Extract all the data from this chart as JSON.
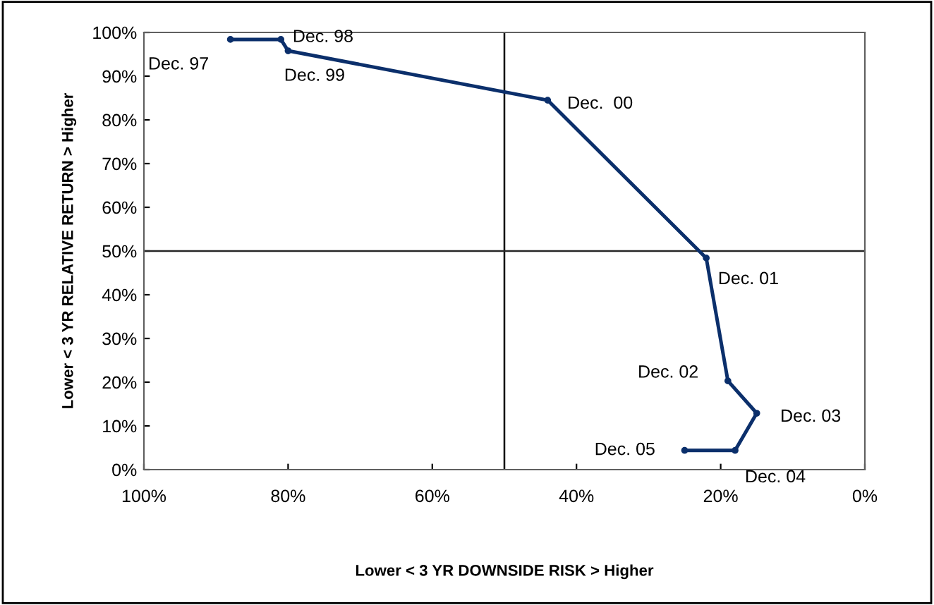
{
  "chart_data": {
    "type": "line",
    "xlabel": "Lower < 3 YR DOWNSIDE RISK > Higher",
    "ylabel": "Lower < 3 YR RELATIVE RETURN > Higher",
    "xlim": [
      100,
      0
    ],
    "xticks": [
      {
        "value": 100,
        "label": "100%"
      },
      {
        "value": 80,
        "label": "80%"
      },
      {
        "value": 60,
        "label": "60%"
      },
      {
        "value": 40,
        "label": "40%"
      },
      {
        "value": 20,
        "label": "20%"
      },
      {
        "value": 0,
        "label": "0%"
      }
    ],
    "ylim": [
      0,
      100
    ],
    "yticks": [
      {
        "value": 0,
        "label": "0%"
      },
      {
        "value": 10,
        "label": "10%"
      },
      {
        "value": 20,
        "label": "20%"
      },
      {
        "value": 30,
        "label": "30%"
      },
      {
        "value": 40,
        "label": "40%"
      },
      {
        "value": 50,
        "label": "50%"
      },
      {
        "value": 60,
        "label": "60%"
      },
      {
        "value": 70,
        "label": "70%"
      },
      {
        "value": 80,
        "label": "80%"
      },
      {
        "value": 90,
        "label": "90%"
      },
      {
        "value": 100,
        "label": "100%"
      }
    ],
    "series": [
      {
        "color": "#0b2f6b",
        "x": [
          88,
          81,
          80,
          44,
          22,
          19,
          15,
          18,
          25
        ],
        "values": [
          98.4,
          98.4,
          95.8,
          84.5,
          48.4,
          20.3,
          12.9,
          4.4,
          4.4
        ]
      }
    ],
    "marker": "circle",
    "line_style": "solid",
    "grid": false,
    "legend": false,
    "ref_lines": [
      {
        "axis": "x",
        "value": 50,
        "color": "#000000"
      },
      {
        "axis": "y",
        "value": 50,
        "color": "#262626"
      }
    ],
    "annotations": [
      {
        "text": "Dec. 97",
        "x": 88,
        "y": 98.4
      },
      {
        "text": "Dec. 98",
        "x": 81,
        "y": 98.4
      },
      {
        "text": "Dec. 99",
        "x": 80,
        "y": 95.8
      },
      {
        "text": "Dec.  00",
        "x": 44,
        "y": 84.5
      },
      {
        "text": "Dec. 01",
        "x": 22,
        "y": 48.4
      },
      {
        "text": "Dec. 02",
        "x": 19,
        "y": 20.3
      },
      {
        "text": "Dec. 03",
        "x": 15,
        "y": 12.9
      },
      {
        "text": "Dec. 04",
        "x": 18,
        "y": 4.4
      },
      {
        "text": "Dec. 05",
        "x": 25,
        "y": 4.4
      }
    ]
  }
}
